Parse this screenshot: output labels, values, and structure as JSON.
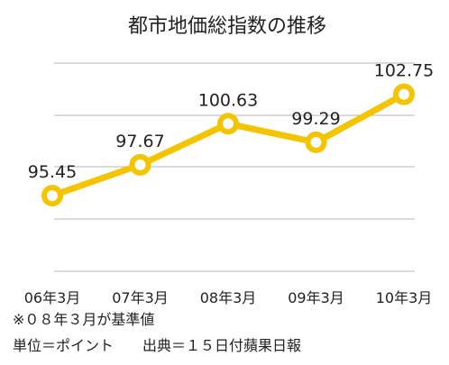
{
  "chart_data": {
    "type": "line",
    "title": "都市地価総指数の推移",
    "categories": [
      "06年3月",
      "07年3月",
      "08年3月",
      "09年3月",
      "10年3月"
    ],
    "series": [
      {
        "values": [
          95.45,
          97.67,
          100.63,
          99.29,
          102.75
        ],
        "labels": [
          "95.45",
          "97.67",
          "100.63",
          "99.29",
          "102.75"
        ]
      }
    ],
    "ylim": [
      90,
      105
    ],
    "grid": true,
    "legend": "none",
    "colors": {
      "line": "#f5c400",
      "grid": "#b5b5b5"
    }
  },
  "notes": {
    "base": "※０８年３月が基準値",
    "unit_source": "単位＝ポイント　　出典＝１５日付蘋果日報"
  }
}
